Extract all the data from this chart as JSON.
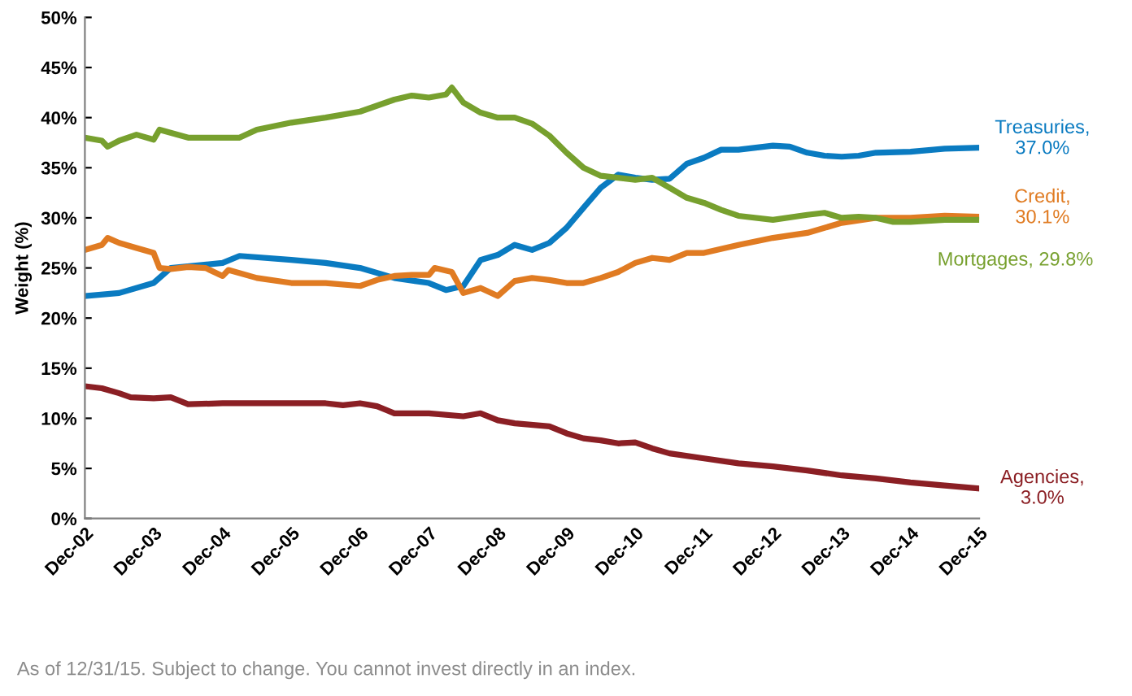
{
  "chart_data": {
    "type": "line",
    "ylabel": "Weight (%)",
    "xlim": [
      "2002-12",
      "2015-12"
    ],
    "xticks": [
      {
        "value": "2002-12",
        "label": "Dec-02"
      },
      {
        "value": "2003-12",
        "label": "Dec-03"
      },
      {
        "value": "2004-12",
        "label": "Dec-04"
      },
      {
        "value": "2005-12",
        "label": "Dec-05"
      },
      {
        "value": "2006-12",
        "label": "Dec-06"
      },
      {
        "value": "2007-12",
        "label": "Dec-07"
      },
      {
        "value": "2008-12",
        "label": "Dec-08"
      },
      {
        "value": "2009-12",
        "label": "Dec-09"
      },
      {
        "value": "2010-12",
        "label": "Dec-10"
      },
      {
        "value": "2011-12",
        "label": "Dec-11"
      },
      {
        "value": "2012-12",
        "label": "Dec-12"
      },
      {
        "value": "2013-12",
        "label": "Dec-13"
      },
      {
        "value": "2014-12",
        "label": "Dec-14"
      },
      {
        "value": "2015-12",
        "label": "Dec-15"
      }
    ],
    "ylim": [
      0,
      50
    ],
    "yticks": [
      {
        "value": 0,
        "label": "0%"
      },
      {
        "value": 5,
        "label": "5%"
      },
      {
        "value": 10,
        "label": "10%"
      },
      {
        "value": 15,
        "label": "15%"
      },
      {
        "value": 20,
        "label": "20%"
      },
      {
        "value": 25,
        "label": "25%"
      },
      {
        "value": 30,
        "label": "30%"
      },
      {
        "value": 35,
        "label": "35%"
      },
      {
        "value": 40,
        "label": "40%"
      },
      {
        "value": 45,
        "label": "45%"
      },
      {
        "value": 50,
        "label": "50%"
      }
    ],
    "grid": false,
    "legend": false,
    "marker": "none",
    "line_style": "solid",
    "series": [
      {
        "color": "#0a7bc1",
        "x": [
          "2002-12",
          "2003-06",
          "2003-12",
          "2004-03",
          "2004-12",
          "2005-03",
          "2005-12",
          "2006-06",
          "2006-12",
          "2007-06",
          "2007-12",
          "2008-03",
          "2008-06",
          "2008-09",
          "2008-12",
          "2009-03",
          "2009-06",
          "2009-09",
          "2009-12",
          "2010-03",
          "2010-06",
          "2010-09",
          "2010-12",
          "2011-03",
          "2011-06",
          "2011-09",
          "2011-12",
          "2012-03",
          "2012-06",
          "2012-12",
          "2013-03",
          "2013-06",
          "2013-09",
          "2013-12",
          "2014-03",
          "2014-06",
          "2014-12",
          "2015-06",
          "2015-12"
        ],
        "values": [
          22.2,
          22.5,
          23.5,
          25,
          25.5,
          26.2,
          25.8,
          25.5,
          25,
          24,
          23.5,
          22.8,
          23.2,
          25.8,
          26.3,
          27.3,
          26.8,
          27.5,
          29,
          31,
          33,
          34.3,
          34,
          33.8,
          33.9,
          35.4,
          36,
          36.8,
          36.8,
          37.2,
          37.1,
          36.5,
          36.2,
          36.1,
          36.2,
          36.5,
          36.6,
          36.9,
          37.0
        ]
      },
      {
        "color": "#e07b22",
        "x": [
          "2002-12",
          "2003-03",
          "2003-04",
          "2003-06",
          "2003-09",
          "2003-12",
          "2004-01",
          "2004-03",
          "2004-06",
          "2004-09",
          "2004-12",
          "2005-01",
          "2005-06",
          "2005-12",
          "2006-06",
          "2006-12",
          "2007-03",
          "2007-06",
          "2007-09",
          "2007-12",
          "2008-01",
          "2008-04",
          "2008-06",
          "2008-09",
          "2008-12",
          "2009-03",
          "2009-06",
          "2009-09",
          "2009-12",
          "2010-03",
          "2010-06",
          "2010-09",
          "2010-12",
          "2011-03",
          "2011-06",
          "2011-09",
          "2011-12",
          "2012-06",
          "2012-12",
          "2013-06",
          "2013-12",
          "2014-06",
          "2014-12",
          "2015-06",
          "2015-12"
        ],
        "values": [
          26.8,
          27.3,
          28,
          27.5,
          27,
          26.5,
          25,
          24.9,
          25.1,
          25,
          24.2,
          24.8,
          24,
          23.5,
          23.5,
          23.2,
          23.8,
          24.2,
          24.3,
          24.3,
          25,
          24.6,
          22.5,
          23,
          22.2,
          23.7,
          24,
          23.8,
          23.5,
          23.5,
          24,
          24.6,
          25.5,
          26,
          25.8,
          26.5,
          26.5,
          27.3,
          28,
          28.5,
          29.5,
          30,
          30,
          30.2,
          30.1
        ]
      },
      {
        "color": "#77a02e",
        "x": [
          "2002-12",
          "2003-03",
          "2003-04",
          "2003-06",
          "2003-09",
          "2003-12",
          "2004-01",
          "2004-06",
          "2004-12",
          "2005-03",
          "2005-06",
          "2005-12",
          "2006-06",
          "2006-12",
          "2007-06",
          "2007-09",
          "2007-12",
          "2008-03",
          "2008-04",
          "2008-06",
          "2008-09",
          "2008-12",
          "2009-03",
          "2009-06",
          "2009-09",
          "2009-12",
          "2010-03",
          "2010-06",
          "2010-09",
          "2010-12",
          "2011-03",
          "2011-06",
          "2011-09",
          "2011-12",
          "2012-03",
          "2012-06",
          "2012-12",
          "2013-06",
          "2013-09",
          "2013-12",
          "2014-03",
          "2014-06",
          "2014-09",
          "2014-12",
          "2015-06",
          "2015-12"
        ],
        "values": [
          38,
          37.7,
          37.1,
          37.7,
          38.3,
          37.8,
          38.8,
          38,
          38,
          38,
          38.8,
          39.5,
          40,
          40.6,
          41.8,
          42.2,
          42,
          42.3,
          43,
          41.5,
          40.5,
          40,
          40,
          39.4,
          38.2,
          36.5,
          35,
          34.2,
          34,
          33.8,
          34,
          33,
          32,
          31.5,
          30.8,
          30.2,
          29.8,
          30.3,
          30.5,
          30,
          30.1,
          30,
          29.6,
          29.6,
          29.8,
          29.8
        ]
      },
      {
        "color": "#8b1f24",
        "x": [
          "2002-12",
          "2003-03",
          "2003-06",
          "2003-08",
          "2003-12",
          "2004-03",
          "2004-06",
          "2004-12",
          "2005-12",
          "2006-06",
          "2006-09",
          "2006-12",
          "2007-03",
          "2007-06",
          "2007-12",
          "2008-06",
          "2008-09",
          "2008-12",
          "2009-03",
          "2009-09",
          "2009-12",
          "2010-03",
          "2010-06",
          "2010-09",
          "2010-12",
          "2011-03",
          "2011-06",
          "2011-12",
          "2012-06",
          "2012-12",
          "2013-06",
          "2013-12",
          "2014-06",
          "2014-12",
          "2015-06",
          "2015-12"
        ],
        "values": [
          13.2,
          13,
          12.5,
          12.1,
          12,
          12.1,
          11.4,
          11.5,
          11.5,
          11.5,
          11.3,
          11.5,
          11.2,
          10.5,
          10.5,
          10.2,
          10.5,
          9.8,
          9.5,
          9.2,
          8.5,
          8,
          7.8,
          7.5,
          7.6,
          7,
          6.5,
          6,
          5.5,
          5.2,
          4.8,
          4.3,
          4,
          3.6,
          3.3,
          3.0
        ]
      }
    ],
    "annotations": [
      {
        "text": "Treasuries,\n37.0%",
        "x": "2015-12",
        "y": 37.0
      },
      {
        "text": "Credit,\n30.1%",
        "x": "2015-12",
        "y": 30.1
      },
      {
        "text": "Mortgages, 29.8%",
        "x": "2015-12",
        "y": 29.8
      },
      {
        "text": "Agencies,\n3.0%",
        "x": "2015-12",
        "y": 3.0
      },
      "As of 12/31/15. Subject to change. You cannot invest directly in an index."
    ]
  }
}
